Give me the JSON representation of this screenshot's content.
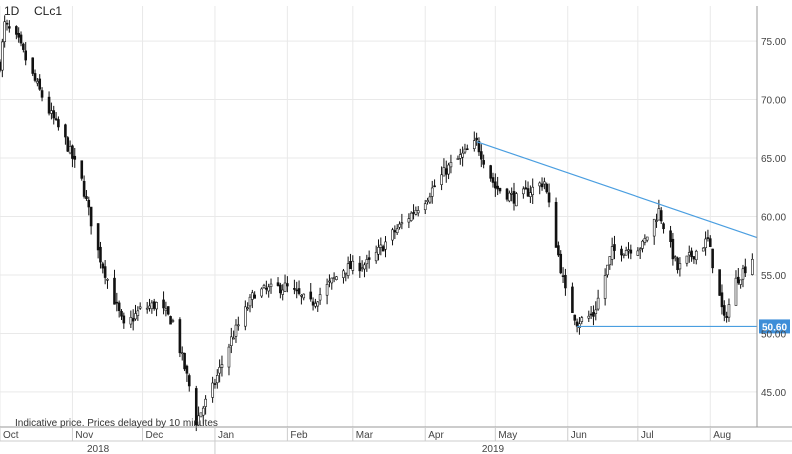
{
  "header": {
    "interval": "1D",
    "symbol": "CLc1"
  },
  "note": "Indicative price. Prices delayed by 10 minutes",
  "colors": {
    "candle": "#111111",
    "grid": "#e9e9e9",
    "trendline": "#4a9ee0",
    "price_tag_bg": "#3d8ed8",
    "axis": "#999999"
  },
  "chart_data": {
    "type": "candlestick",
    "y_axis": {
      "ticks": [
        "45.00",
        "50.00",
        "55.00",
        "60.00",
        "65.00",
        "70.00",
        "75.00"
      ],
      "range": [
        42.0,
        78.0
      ]
    },
    "x_axis": {
      "months": [
        "Oct",
        "Nov",
        "Dec",
        "Jan",
        "Feb",
        "Mar",
        "Apr",
        "May",
        "Jun",
        "Jul",
        "Aug"
      ],
      "years": [
        "2018",
        "2019"
      ],
      "start": "2018-10-01",
      "end": "2019-08-21"
    },
    "price_series_close": [
      [
        "2018-10-01",
        73.0
      ],
      [
        "2018-10-03",
        76.4
      ],
      [
        "2018-10-09",
        74.9
      ],
      [
        "2018-10-15",
        72.0
      ],
      [
        "2018-10-22",
        69.0
      ],
      [
        "2018-10-29",
        66.5
      ],
      [
        "2018-11-05",
        63.0
      ],
      [
        "2018-11-12",
        57.0
      ],
      [
        "2018-11-23",
        50.5
      ],
      [
        "2018-11-30",
        52.0
      ],
      [
        "2018-12-07",
        52.5
      ],
      [
        "2018-12-14",
        51.0
      ],
      [
        "2018-12-21",
        45.5
      ],
      [
        "2018-12-24",
        42.5
      ],
      [
        "2018-12-31",
        45.3
      ],
      [
        "2019-01-08",
        49.5
      ],
      [
        "2019-01-18",
        53.5
      ],
      [
        "2019-01-31",
        54.0
      ],
      [
        "2019-02-11",
        52.5
      ],
      [
        "2019-02-25",
        55.5
      ],
      [
        "2019-03-08",
        56.0
      ],
      [
        "2019-03-18",
        58.5
      ],
      [
        "2019-04-01",
        61.5
      ],
      [
        "2019-04-10",
        64.0
      ],
      [
        "2019-04-23",
        66.3
      ],
      [
        "2019-05-01",
        62.5
      ],
      [
        "2019-05-10",
        61.5
      ],
      [
        "2019-05-22",
        63.0
      ],
      [
        "2019-05-31",
        53.5
      ],
      [
        "2019-06-05",
        51.0
      ],
      [
        "2019-06-12",
        51.6
      ],
      [
        "2019-06-20",
        57.0
      ],
      [
        "2019-07-03",
        57.5
      ],
      [
        "2019-07-10",
        60.5
      ],
      [
        "2019-07-18",
        55.5
      ],
      [
        "2019-07-31",
        58.0
      ],
      [
        "2019-08-07",
        51.1
      ],
      [
        "2019-08-12",
        54.5
      ],
      [
        "2019-08-19",
        56.5
      ]
    ],
    "trendline": {
      "points": [
        [
          "2019-04-23",
          66.4
        ],
        [
          "2019-08-21",
          58.2
        ]
      ]
    },
    "support_line": {
      "points": [
        [
          "2019-06-05",
          50.6
        ],
        [
          "2019-08-21",
          50.6
        ]
      ]
    },
    "price_tag": {
      "value": 50.6,
      "label": "50.60"
    }
  }
}
